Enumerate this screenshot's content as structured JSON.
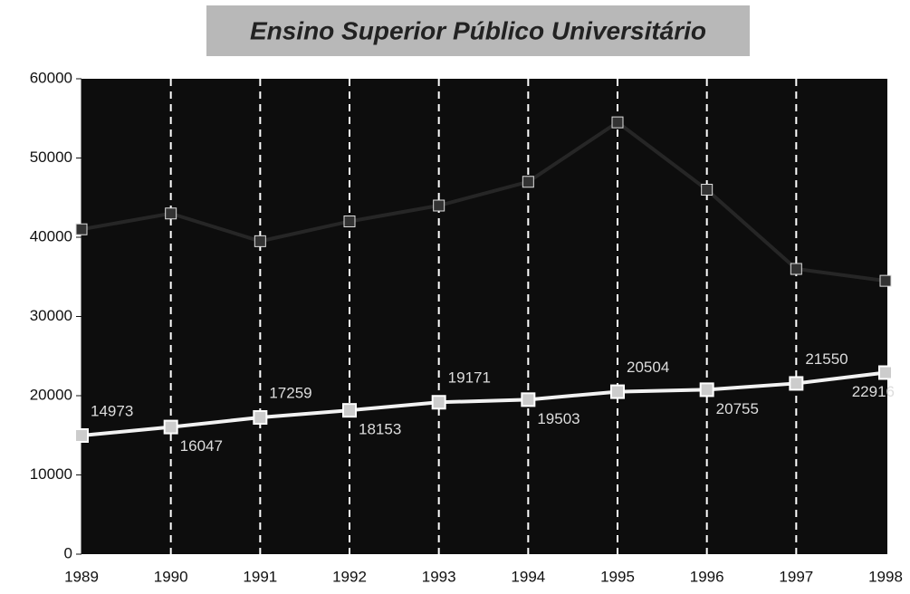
{
  "chart_data": {
    "type": "line",
    "title": "Ensino Superior Público Universitário",
    "categories": [
      "1989",
      "1990",
      "1991",
      "1992",
      "1993",
      "1994",
      "1995",
      "1996",
      "1997",
      "1998"
    ],
    "series": [
      {
        "color": "#262626",
        "values": [
          41000,
          43000,
          39500,
          42000,
          44000,
          47000,
          54500,
          46000,
          36000,
          34500
        ]
      },
      {
        "color": "#f2f2f2",
        "values": [
          14973,
          16047,
          17259,
          18153,
          19171,
          19503,
          20504,
          20755,
          21550,
          22916
        ]
      }
    ],
    "ylim": [
      0,
      60000
    ],
    "yticks": [
      0,
      10000,
      20000,
      30000,
      40000,
      50000,
      60000
    ],
    "grid": true
  }
}
